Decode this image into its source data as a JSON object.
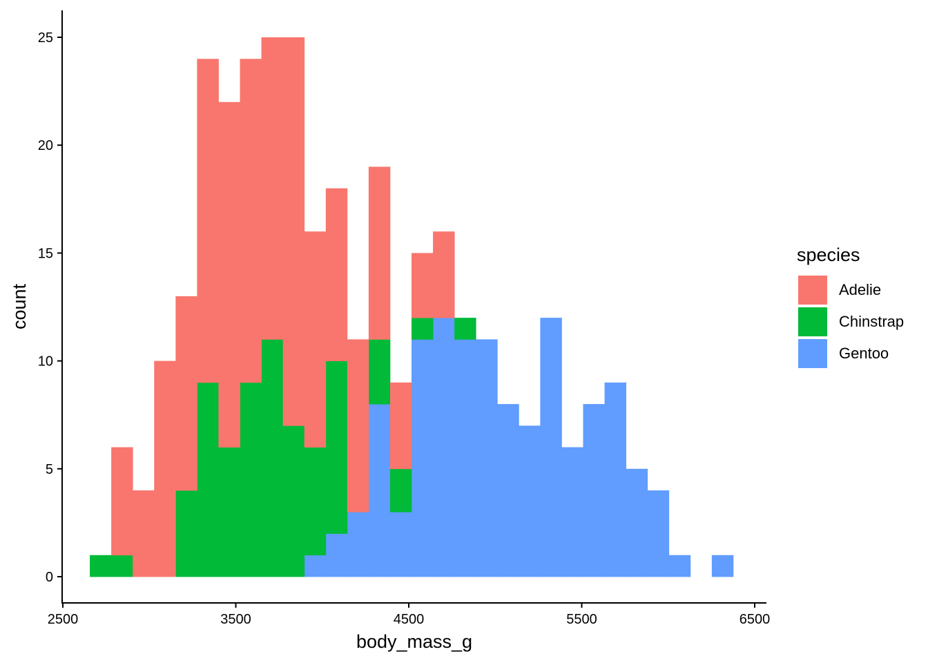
{
  "chart_data": {
    "type": "bar",
    "stacked": true,
    "xlabel": "body_mass_g",
    "ylabel": "count",
    "xlim": [
      2500,
      6500
    ],
    "ylim": [
      0,
      25
    ],
    "x_ticks": [
      2500,
      3500,
      4500,
      5500,
      6500
    ],
    "y_ticks": [
      0,
      5,
      10,
      15,
      20,
      25
    ],
    "grid": false,
    "legend_position": "right",
    "legend_title": "species",
    "bins": [
      [
        2656,
        2780
      ],
      [
        2780,
        2904
      ],
      [
        2904,
        3028
      ],
      [
        3028,
        3152
      ],
      [
        3152,
        3276
      ],
      [
        3276,
        3400
      ],
      [
        3400,
        3524
      ],
      [
        3524,
        3648
      ],
      [
        3648,
        3772
      ],
      [
        3772,
        3896
      ],
      [
        3896,
        4020
      ],
      [
        4020,
        4144
      ],
      [
        4144,
        4268
      ],
      [
        4268,
        4392
      ],
      [
        4392,
        4516
      ],
      [
        4516,
        4640
      ],
      [
        4640,
        4764
      ],
      [
        4764,
        4888
      ],
      [
        4888,
        5012
      ],
      [
        5012,
        5136
      ],
      [
        5136,
        5260
      ],
      [
        5260,
        5384
      ],
      [
        5384,
        5508
      ],
      [
        5508,
        5632
      ],
      [
        5632,
        5756
      ],
      [
        5756,
        5880
      ],
      [
        5880,
        6004
      ],
      [
        6004,
        6128
      ],
      [
        6128,
        6252
      ],
      [
        6252,
        6376
      ]
    ],
    "series": [
      {
        "name": "Gentoo",
        "color": "#619CFF",
        "values": [
          0,
          0,
          0,
          0,
          0,
          0,
          0,
          0,
          0,
          0,
          1,
          2,
          3,
          8,
          3,
          11,
          12,
          11,
          11,
          8,
          7,
          12,
          6,
          8,
          9,
          5,
          4,
          1,
          0,
          1
        ]
      },
      {
        "name": "Chinstrap",
        "color": "#00BA38",
        "values": [
          1,
          1,
          0,
          0,
          4,
          9,
          6,
          9,
          11,
          7,
          5,
          8,
          0,
          3,
          2,
          1,
          0,
          1,
          0,
          0,
          0,
          0,
          0,
          0,
          0,
          0,
          0,
          0,
          0,
          0
        ]
      },
      {
        "name": "Adelie",
        "color": "#F8766D",
        "values": [
          0,
          5,
          4,
          10,
          9,
          15,
          16,
          15,
          14,
          18,
          10,
          8,
          8,
          8,
          4,
          3,
          4,
          0,
          0,
          0,
          0,
          0,
          0,
          0,
          0,
          0,
          0,
          0,
          0,
          0
        ]
      }
    ],
    "legend_order": [
      "Adelie",
      "Chinstrap",
      "Gentoo"
    ]
  }
}
